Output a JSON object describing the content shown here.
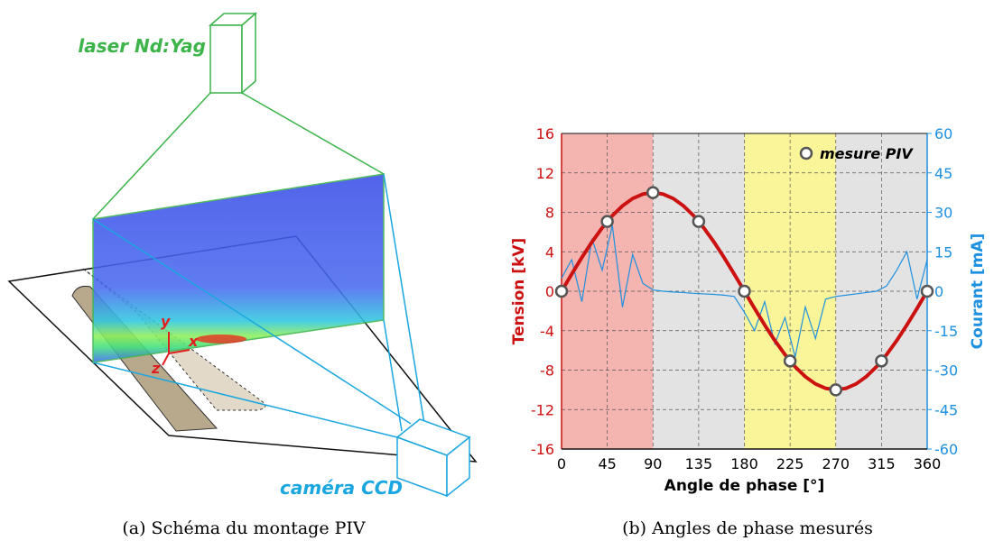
{
  "figure_a": {
    "laser_label": "laser Nd:Yag",
    "camera_label": "caméra CCD",
    "axis_x": "x",
    "axis_y": "y",
    "axis_z": "z",
    "caption": "(a) Schéma du montage PIV"
  },
  "chart_data": {
    "type": "line",
    "caption": "(b) Angles de phase mesurés",
    "xlabel": "Angle de phase  [°]",
    "ylabel": "Tension  [kV]",
    "y2label": "Courant  [mA]",
    "xlim": [
      0,
      360
    ],
    "xticks": [
      0,
      45,
      90,
      135,
      180,
      225,
      270,
      315,
      360
    ],
    "ylim": [
      -16,
      16
    ],
    "yticks": [
      -16,
      -12,
      -8,
      -4,
      0,
      4,
      8,
      12,
      16
    ],
    "y2lim": [
      -60,
      60
    ],
    "y2ticks": [
      -60,
      -45,
      -30,
      -15,
      0,
      15,
      30,
      45,
      60
    ],
    "grid": true,
    "regions": [
      {
        "start": 0,
        "end": 90,
        "color": "#f4b4b0"
      },
      {
        "start": 90,
        "end": 180,
        "color": "#e3e3e3"
      },
      {
        "start": 180,
        "end": 270,
        "color": "#fbf59a"
      },
      {
        "start": 270,
        "end": 360,
        "color": "#e3e3e3"
      }
    ],
    "x": [
      0,
      10,
      20,
      30,
      40,
      50,
      60,
      70,
      80,
      90,
      100,
      110,
      120,
      130,
      140,
      150,
      160,
      170,
      180,
      190,
      200,
      210,
      220,
      230,
      240,
      250,
      260,
      270,
      280,
      290,
      300,
      310,
      320,
      330,
      340,
      350,
      360
    ],
    "series": [
      {
        "color": "#cc1111",
        "axis": "y",
        "values": [
          0,
          1.74,
          3.42,
          5,
          6.43,
          7.66,
          8.66,
          9.4,
          9.85,
          10,
          9.85,
          9.4,
          8.66,
          7.66,
          6.43,
          5,
          3.42,
          1.74,
          0,
          -1.74,
          -3.42,
          -5,
          -6.43,
          -7.66,
          -8.66,
          -9.4,
          -9.85,
          -10,
          -9.85,
          -9.4,
          -8.66,
          -7.66,
          -6.43,
          -5,
          -3.42,
          -1.74,
          0
        ]
      },
      {
        "color": "#1e90e0",
        "axis": "y2",
        "values": [
          5,
          12,
          -4,
          20,
          8,
          25,
          -6,
          14,
          3,
          0.5,
          0,
          -0.3,
          -0.5,
          -0.8,
          -1,
          -1.2,
          -1.5,
          -2,
          -8,
          -15,
          -4,
          -20,
          -10,
          -25,
          -6,
          -18,
          -3,
          -2,
          -1.5,
          -1,
          -0.5,
          0,
          2,
          8,
          15,
          -3,
          12
        ]
      }
    ],
    "points": {
      "name": "mesure PIV",
      "color": "#555555",
      "x": [
        0,
        45,
        90,
        135,
        180,
        225,
        270,
        315,
        360
      ],
      "values": [
        0,
        7.07,
        10,
        7.07,
        0,
        -7.07,
        -10,
        -7.07,
        0
      ]
    }
  }
}
